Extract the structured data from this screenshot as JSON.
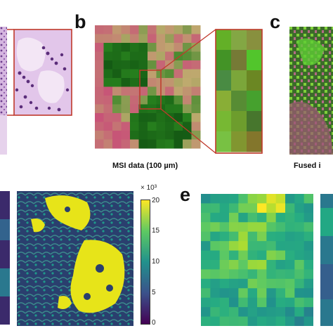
{
  "panels": {
    "b": {
      "label": "b",
      "caption": "MSI data (100 µm)"
    },
    "c": {
      "label": "c",
      "caption": "Fused i"
    },
    "e": {
      "label": "e"
    }
  },
  "colorbar": {
    "multiplier": "× 10³",
    "ticks": [
      "20",
      "15",
      "10",
      "5",
      "0"
    ],
    "colormap": "viridis"
  },
  "colors": {
    "zoom_box": "#c0392b",
    "he_stain": "#c9a6d8",
    "msi_green": "#2f8a1f",
    "msi_pink": "#c45479"
  }
}
